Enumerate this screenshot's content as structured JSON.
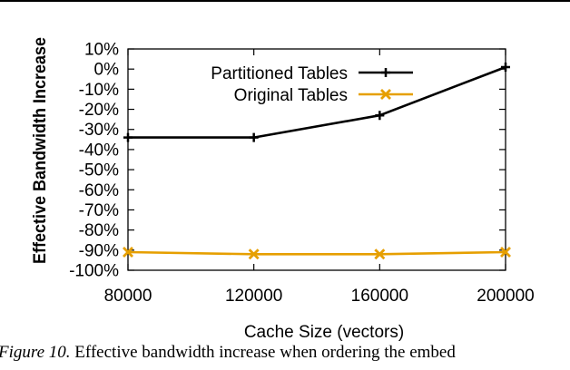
{
  "chart_data": {
    "type": "line",
    "title": "",
    "xlabel": "Cache Size (vectors)",
    "ylabel": "Effective Bandwidth Increase",
    "x": [
      80000,
      120000,
      160000,
      200000
    ],
    "xticks": [
      "80000",
      "120000",
      "160000",
      "200000"
    ],
    "xlim": [
      80000,
      200000
    ],
    "ylim": [
      -100,
      10
    ],
    "yticks": [
      10,
      0,
      -10,
      -20,
      -30,
      -40,
      -50,
      -60,
      -70,
      -80,
      -90,
      -100
    ],
    "ytick_labels": [
      "10%",
      "0%",
      "-10%",
      "-20%",
      "-30%",
      "-40%",
      "-50%",
      "-60%",
      "-70%",
      "-80%",
      "-90%",
      "-100%"
    ],
    "grid": false,
    "legend_position": "top-right",
    "series": [
      {
        "name": "Partitioned Tables",
        "values": [
          -34,
          -34,
          -23,
          1
        ],
        "color": "#000000",
        "marker": "plus"
      },
      {
        "name": "Original Tables",
        "values": [
          -91,
          -92,
          -92,
          -91
        ],
        "color": "#e69f00",
        "marker": "x"
      }
    ]
  },
  "caption": {
    "label": "Figure 10.",
    "text": "Effective bandwidth increase when ordering the embed"
  }
}
